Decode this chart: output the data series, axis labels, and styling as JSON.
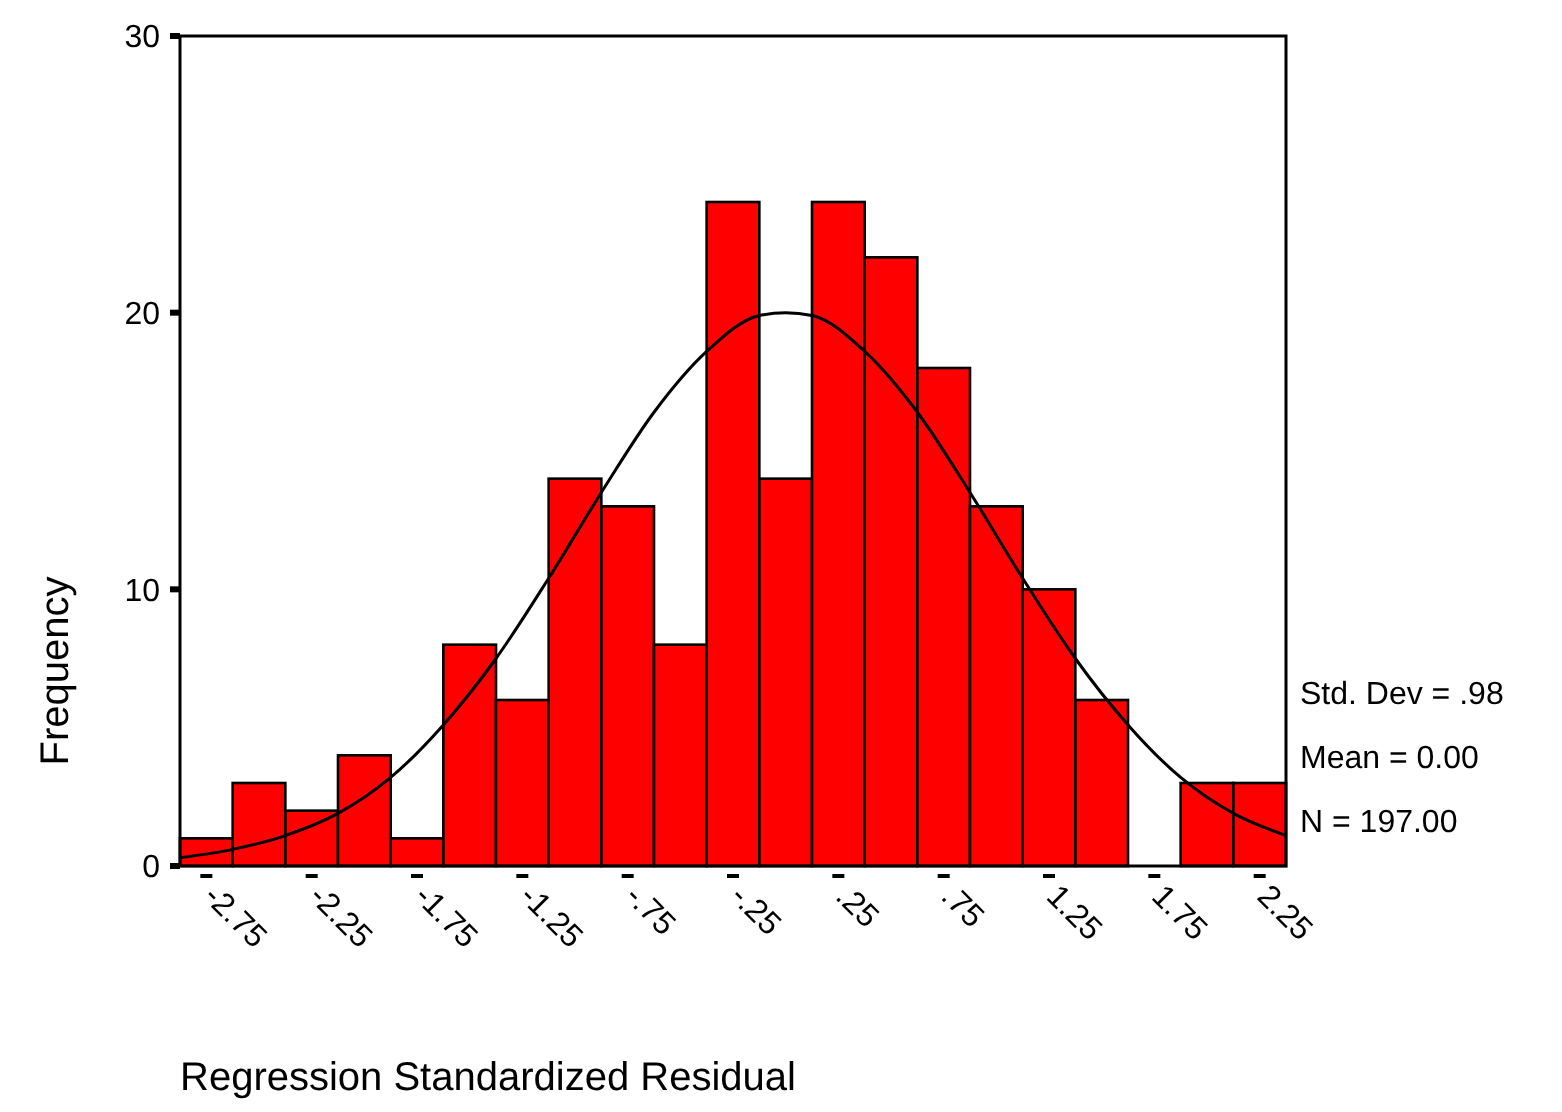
{
  "chart_data": {
    "type": "histogram",
    "xlabel": "Regression Standardized Residual",
    "ylabel": "Frequency",
    "xlim": [
      -2.875,
      2.375
    ],
    "xticks": [
      {
        "value": -2.75,
        "label": "-2.75"
      },
      {
        "value": -2.25,
        "label": "-2.25"
      },
      {
        "value": -1.75,
        "label": "-1.75"
      },
      {
        "value": -1.25,
        "label": "-1.25"
      },
      {
        "value": -0.75,
        "label": "-.75"
      },
      {
        "value": -0.25,
        "label": "-.25"
      },
      {
        "value": 0.25,
        "label": ".25"
      },
      {
        "value": 0.75,
        "label": ".75"
      },
      {
        "value": 1.25,
        "label": "1.25"
      },
      {
        "value": 1.75,
        "label": "1.75"
      },
      {
        "value": 2.25,
        "label": "2.25"
      }
    ],
    "ylim": [
      0,
      30
    ],
    "yticks": [
      0,
      10,
      20,
      30
    ],
    "grid": false,
    "series": [
      {
        "color": "#ff0000",
        "bins": [
          -2.875,
          -2.625,
          -2.375,
          -2.125,
          -1.875,
          -1.625,
          -1.375,
          -1.125,
          -0.875,
          -0.625,
          -0.375,
          -0.125,
          0.125,
          0.375,
          0.625,
          0.875,
          1.125,
          1.375,
          1.625,
          1.875,
          2.125,
          2.375
        ],
        "values": [
          1,
          3,
          2,
          4,
          1,
          8,
          6,
          14,
          13,
          8,
          24,
          14,
          24,
          22,
          18,
          13,
          10,
          6,
          0,
          3,
          3
        ]
      },
      {
        "type": "line",
        "color": "#000000",
        "line_style": "solid",
        "marker": "none",
        "x": [
          -2.875,
          -2.625,
          -2.375,
          -2.125,
          -1.875,
          -1.625,
          -1.375,
          -1.125,
          -0.875,
          -0.625,
          -0.375,
          -0.125,
          0,
          0.125,
          0.375,
          0.625,
          0.875,
          1.125,
          1.375,
          1.625,
          1.875,
          2.125,
          2.375
        ],
        "values": [
          0.3,
          0.6,
          1.1,
          1.9,
          3.2,
          5.1,
          7.5,
          10.4,
          13.5,
          16.4,
          18.6,
          19.9,
          20.0,
          19.9,
          18.6,
          16.4,
          13.5,
          10.4,
          7.5,
          5.1,
          3.2,
          1.9,
          1.1
        ]
      }
    ],
    "annotations": [
      "Std. Dev = .98",
      "Mean = 0.00",
      "N = 197.00"
    ]
  }
}
